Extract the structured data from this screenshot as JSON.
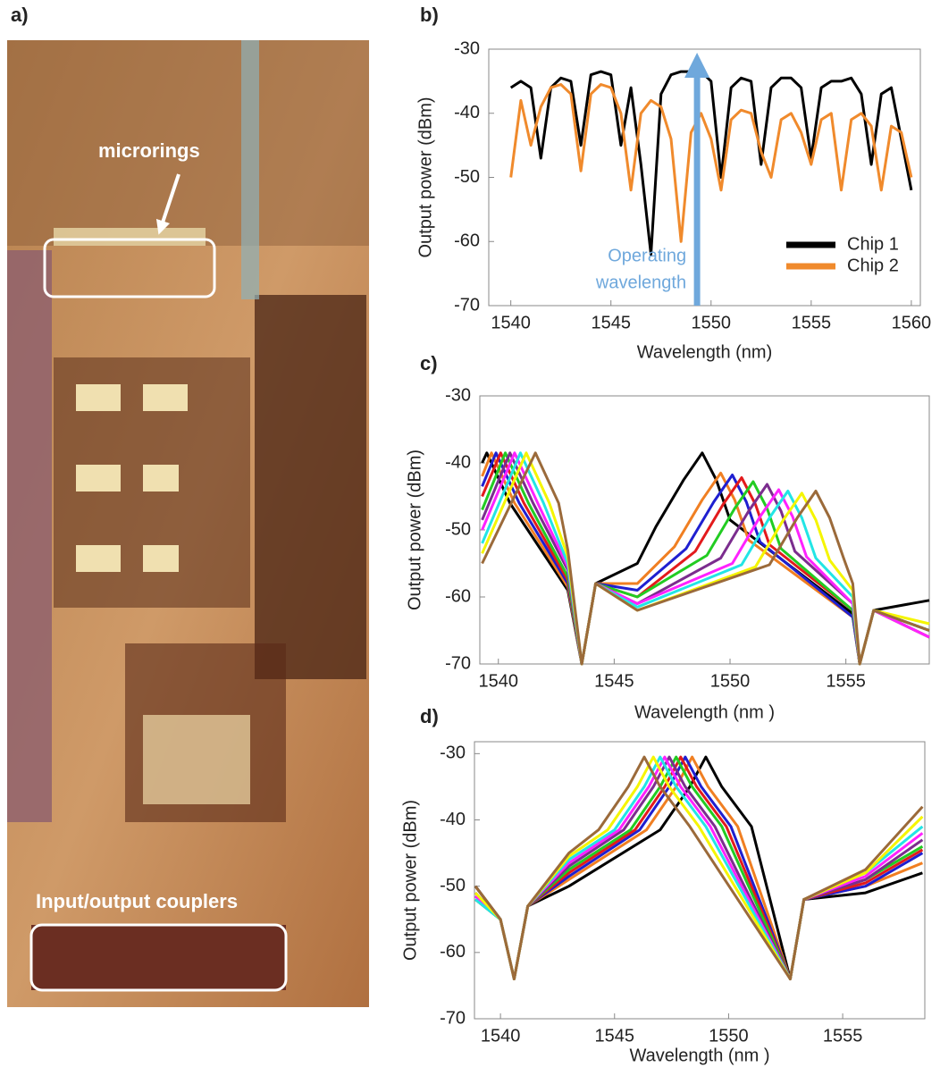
{
  "photo": {
    "label": "a)",
    "annotations": [
      "microrings",
      "Input/output couplers"
    ]
  },
  "chart_data": [
    {
      "type": "line",
      "panel_label": "b)",
      "x": [
        1540,
        1540.5,
        1541,
        1541.5,
        1542,
        1542.5,
        1543,
        1543.5,
        1544,
        1544.5,
        1545,
        1545.5,
        1546,
        1546.5,
        1547,
        1547.5,
        1548,
        1548.5,
        1549,
        1549.5,
        1550,
        1550.5,
        1551,
        1551.5,
        1552,
        1552.5,
        1553,
        1553.5,
        1554,
        1554.5,
        1555,
        1555.5,
        1556,
        1556.5,
        1557,
        1557.5,
        1558,
        1558.5,
        1559,
        1559.5,
        1560
      ],
      "series": [
        {
          "name": "Chip 1",
          "color": "#000000",
          "values": [
            -36,
            -35,
            -36,
            -47,
            -36,
            -34.5,
            -35,
            -45,
            -34,
            -33.5,
            -34,
            -45,
            -36,
            -48,
            -62,
            -37,
            -34,
            -33.5,
            -33.5,
            -33.5,
            -35,
            -50,
            -36,
            -34.5,
            -35,
            -48,
            -36,
            -34.5,
            -34.5,
            -36,
            -47,
            -36,
            -35,
            -35,
            -34.5,
            -37,
            -48,
            -37,
            -36,
            -44,
            -52
          ]
        },
        {
          "name": "Chip 2",
          "color": "#f08a2c",
          "values": [
            -50,
            -38,
            -45,
            -39,
            -36,
            -35.5,
            -37,
            -49,
            -37,
            -35.5,
            -36,
            -40,
            -52,
            -40,
            -38,
            -39,
            -44,
            -60,
            -43,
            -40,
            -44,
            -52,
            -41,
            -39.5,
            -40,
            -46,
            -50,
            -41,
            -40,
            -43,
            -48,
            -41,
            -40,
            -52,
            -41,
            -40,
            -42,
            -52,
            -42,
            -43,
            -50
          ]
        }
      ],
      "xlim": [
        1538.9,
        1560.45
      ],
      "ylim": [
        -70,
        -30
      ],
      "xticks": [
        1540,
        1545,
        1550,
        1555,
        1560
      ],
      "yticks": [
        -70,
        -60,
        -50,
        -40,
        -30
      ],
      "xlabel": "Wavelength (nm)",
      "ylabel": "Output power (dBm)",
      "legend": "lower-right",
      "annotation": {
        "lines": [
          "Operating",
          "wavelength"
        ],
        "x": 1549.3,
        "color": "#6fa8dc"
      }
    },
    {
      "type": "line",
      "panel_label": "c)",
      "series": [
        {
          "color": "#000000",
          "x": [
            1539.3,
            1539.5,
            1540.5,
            1543.0,
            1543.6,
            1544.2,
            1546,
            1546.8,
            1548.0,
            1548.8,
            1549.4,
            1550.0,
            1555.3,
            1555.6,
            1556.2,
            1558.6
          ],
          "values": [
            -40,
            -38.5,
            -46,
            -59,
            -70,
            -58,
            -55,
            -49.5,
            -42.5,
            -38.5,
            -42.5,
            -48.5,
            -62.5,
            -70,
            -62,
            -60.5
          ]
        },
        {
          "color": "#f07f22",
          "x": [
            1539.3,
            1539.7,
            1540.7,
            1543.0,
            1543.6,
            1544.2,
            1546,
            1547.6,
            1548.8,
            1549.6,
            1550.2,
            1550.8,
            1555.3,
            1555.6,
            1556.2,
            1558.6
          ],
          "values": [
            -42,
            -38.5,
            -46,
            -58.5,
            -70,
            -58,
            -58,
            -52.5,
            -45.5,
            -41.5,
            -45.5,
            -51.5,
            -63,
            -70,
            -62,
            -66
          ]
        },
        {
          "color": "#1f1fd0",
          "x": [
            1539.3,
            1539.9,
            1540.9,
            1543.0,
            1543.6,
            1544.2,
            1546,
            1548.1,
            1549.3,
            1550.1,
            1550.7,
            1551.3,
            1555.3,
            1555.6,
            1556.2,
            1558.6
          ],
          "values": [
            -43.5,
            -38.5,
            -46,
            -58,
            -70,
            -58,
            -59,
            -52.8,
            -45.8,
            -41.8,
            -45.8,
            -51.8,
            -63,
            -70,
            -62,
            -65
          ]
        },
        {
          "color": "#e31a1c",
          "x": [
            1539.3,
            1540.1,
            1541.1,
            1543.0,
            1543.6,
            1544.2,
            1546,
            1548.5,
            1549.7,
            1550.5,
            1551.1,
            1551.7,
            1555.3,
            1555.6,
            1556.2,
            1558.6
          ],
          "values": [
            -45,
            -38.5,
            -46,
            -57.5,
            -70,
            -58,
            -60,
            -53.2,
            -46.2,
            -42.2,
            -46.2,
            -52.2,
            -62,
            -70,
            -62,
            -65
          ]
        },
        {
          "color": "#22cc22",
          "x": [
            1539.3,
            1540.3,
            1541.3,
            1543.0,
            1543.6,
            1544.2,
            1546,
            1549.0,
            1550.2,
            1551.0,
            1551.6,
            1552.2,
            1555.3,
            1555.6,
            1556.2,
            1558.6
          ],
          "values": [
            -47,
            -38.5,
            -46,
            -57,
            -70,
            -58,
            -60,
            -53.8,
            -46.8,
            -42.8,
            -46.8,
            -52.8,
            -62,
            -70,
            -62,
            -65
          ]
        },
        {
          "color": "#7b2d8e",
          "x": [
            1539.3,
            1540.5,
            1541.5,
            1543.0,
            1543.6,
            1544.2,
            1546,
            1549.6,
            1550.8,
            1551.6,
            1552.2,
            1552.8,
            1555.3,
            1555.6,
            1556.2,
            1558.6
          ],
          "values": [
            -48.5,
            -38.5,
            -46,
            -56,
            -70,
            -58,
            -61,
            -54.2,
            -47.2,
            -43.2,
            -47.2,
            -53.2,
            -61,
            -70,
            -62,
            -66
          ]
        },
        {
          "color": "#ff22ff",
          "x": [
            1539.3,
            1540.7,
            1541.7,
            1543.0,
            1543.6,
            1544.2,
            1546,
            1550.1,
            1551.3,
            1552.1,
            1552.7,
            1553.3,
            1555.3,
            1555.6,
            1556.2,
            1558.6
          ],
          "values": [
            -50,
            -38.5,
            -46,
            -55.5,
            -70,
            -58,
            -61,
            -55,
            -48,
            -44,
            -48,
            -54,
            -61,
            -70,
            -62,
            -66
          ]
        },
        {
          "color": "#22e5e5",
          "x": [
            1539.3,
            1540.95,
            1541.95,
            1543.0,
            1543.6,
            1544.2,
            1546,
            1550.5,
            1551.7,
            1552.5,
            1553.1,
            1553.7,
            1555.3,
            1555.6,
            1556.2,
            1558.6
          ],
          "values": [
            -52,
            -38.5,
            -46,
            -55,
            -70,
            -58,
            -61.5,
            -55.2,
            -48.2,
            -44.2,
            -48.2,
            -54.2,
            -60,
            -70,
            -62,
            -65
          ]
        },
        {
          "color": "#f5f500",
          "x": [
            1539.3,
            1541.2,
            1542.2,
            1543.0,
            1543.6,
            1544.2,
            1546,
            1551.1,
            1552.3,
            1553.1,
            1553.7,
            1554.3,
            1555.3,
            1555.6,
            1556.2,
            1558.6
          ],
          "values": [
            -53.5,
            -38.5,
            -46,
            -54,
            -70,
            -58,
            -62,
            -55.5,
            -48.5,
            -44.5,
            -48.5,
            -54.5,
            -59,
            -70,
            -62,
            -64
          ]
        },
        {
          "color": "#9b6a3a",
          "x": [
            1539.3,
            1541.6,
            1542.6,
            1543.0,
            1543.6,
            1544.2,
            1546,
            1551.7,
            1552.9,
            1553.7,
            1554.3,
            1554.9,
            1555.3,
            1555.6,
            1556.2,
            1558.6
          ],
          "values": [
            -55,
            -38.5,
            -46,
            -53,
            -70,
            -58,
            -62,
            -55.2,
            -48.2,
            -44.2,
            -48.2,
            -54.2,
            -58,
            -70,
            -62,
            -65
          ]
        }
      ],
      "xlim": [
        1539.2,
        1558.6
      ],
      "ylim": [
        -70,
        -30
      ],
      "xticks": [
        1540,
        1545,
        1550,
        1555
      ],
      "yticks": [
        -70,
        -60,
        -50,
        -40,
        -30
      ],
      "xlabel": "Wavelength (nm )",
      "ylabel": "Output power (dBm)"
    },
    {
      "type": "line",
      "panel_label": "d)",
      "series": [
        {
          "color": "#000000",
          "x": [
            1538.9,
            1540.0,
            1540.6,
            1541.2,
            1543,
            1547.0,
            1548.3,
            1549.0,
            1549.7,
            1551.0,
            1552.7,
            1553.3,
            1556,
            1558.5
          ],
          "values": [
            -50,
            -55,
            -64,
            -53,
            -50,
            -41.5,
            -35,
            -30.5,
            -35,
            -41,
            -64,
            -52,
            -51,
            -48
          ]
        },
        {
          "color": "#f07f22",
          "x": [
            1538.9,
            1540.0,
            1540.6,
            1541.2,
            1543,
            1546.4,
            1547.7,
            1548.4,
            1549.1,
            1550.4,
            1552.7,
            1553.3,
            1556,
            1558.5
          ],
          "values": [
            -51,
            -55,
            -64,
            -53,
            -49,
            -41.5,
            -35,
            -30.5,
            -35,
            -41,
            -64,
            -52,
            -50,
            -46.5
          ]
        },
        {
          "color": "#1f1fd0",
          "x": [
            1538.9,
            1540.0,
            1540.6,
            1541.2,
            1543,
            1546.1,
            1547.4,
            1548.1,
            1548.8,
            1550.1,
            1552.7,
            1553.3,
            1556,
            1558.5
          ],
          "values": [
            -51.5,
            -55,
            -64,
            -53,
            -48.5,
            -41.5,
            -35,
            -30.5,
            -35,
            -41,
            -64,
            -52,
            -50,
            -45
          ]
        },
        {
          "color": "#e31a1c",
          "x": [
            1538.9,
            1540.0,
            1540.6,
            1541.2,
            1543,
            1545.9,
            1547.2,
            1547.9,
            1548.6,
            1549.9,
            1552.7,
            1553.3,
            1556,
            1558.5
          ],
          "values": [
            -52,
            -55,
            -64,
            -53,
            -48,
            -41.5,
            -35,
            -30.5,
            -35,
            -41,
            -64,
            -52,
            -49.5,
            -44.5
          ]
        },
        {
          "color": "#22cc22",
          "x": [
            1538.9,
            1540.0,
            1540.6,
            1541.2,
            1543,
            1545.7,
            1547.0,
            1547.7,
            1548.4,
            1549.7,
            1552.7,
            1553.3,
            1556,
            1558.5
          ],
          "values": [
            -52,
            -55,
            -64,
            -53,
            -47.5,
            -41.5,
            -35,
            -30.5,
            -35,
            -41,
            -64,
            -52,
            -49,
            -44
          ]
        },
        {
          "color": "#7b2d8e",
          "x": [
            1538.9,
            1540.0,
            1540.6,
            1541.2,
            1543,
            1545.4,
            1546.7,
            1547.4,
            1548.1,
            1549.4,
            1552.7,
            1553.3,
            1556,
            1558.5
          ],
          "values": [
            -51,
            -55,
            -64,
            -53,
            -47,
            -41.5,
            -35,
            -30.5,
            -35,
            -41,
            -64,
            -52,
            -49,
            -43
          ]
        },
        {
          "color": "#ff22ff",
          "x": [
            1538.9,
            1540.0,
            1540.6,
            1541.2,
            1543,
            1545.2,
            1546.5,
            1547.2,
            1547.9,
            1549.2,
            1552.7,
            1553.3,
            1556,
            1558.5
          ],
          "values": [
            -51.5,
            -55,
            -64,
            -53,
            -46.5,
            -41.5,
            -35,
            -30.5,
            -35,
            -41,
            -64,
            -52,
            -48.5,
            -42
          ]
        },
        {
          "color": "#22e5e5",
          "x": [
            1538.9,
            1540.0,
            1540.6,
            1541.2,
            1543,
            1545.0,
            1546.3,
            1547.0,
            1547.7,
            1549.0,
            1552.7,
            1553.3,
            1556,
            1558.5
          ],
          "values": [
            -52,
            -55,
            -64,
            -53,
            -46,
            -41.5,
            -35,
            -30.5,
            -35,
            -41,
            -64,
            -52,
            -48,
            -41
          ]
        },
        {
          "color": "#f5f500",
          "x": [
            1538.9,
            1540.0,
            1540.6,
            1541.2,
            1543,
            1544.7,
            1546.0,
            1546.7,
            1547.4,
            1548.7,
            1552.7,
            1553.3,
            1556,
            1558.5
          ],
          "values": [
            -51,
            -55,
            -64,
            -53,
            -45.5,
            -41.5,
            -35,
            -30.5,
            -35,
            -41,
            -64,
            -52,
            -48,
            -39.5
          ]
        },
        {
          "color": "#9b6a3a",
          "x": [
            1538.9,
            1540.0,
            1540.6,
            1541.2,
            1543,
            1544.3,
            1545.6,
            1546.3,
            1547.0,
            1548.3,
            1552.7,
            1553.3,
            1556,
            1558.5
          ],
          "values": [
            -50,
            -55,
            -64,
            -53,
            -45,
            -41.5,
            -35,
            -30.5,
            -35,
            -41,
            -64,
            -52,
            -47.5,
            -38
          ]
        }
      ],
      "xlim": [
        1538.86,
        1558.6
      ],
      "ylim": [
        -70,
        -28.2
      ],
      "xticks": [
        1540,
        1545,
        1550,
        1555
      ],
      "yticks": [
        -70,
        -60,
        -50,
        -40,
        -30
      ],
      "xlabel": "Wavelength (nm )",
      "ylabel": "Output power (dBm)"
    }
  ]
}
